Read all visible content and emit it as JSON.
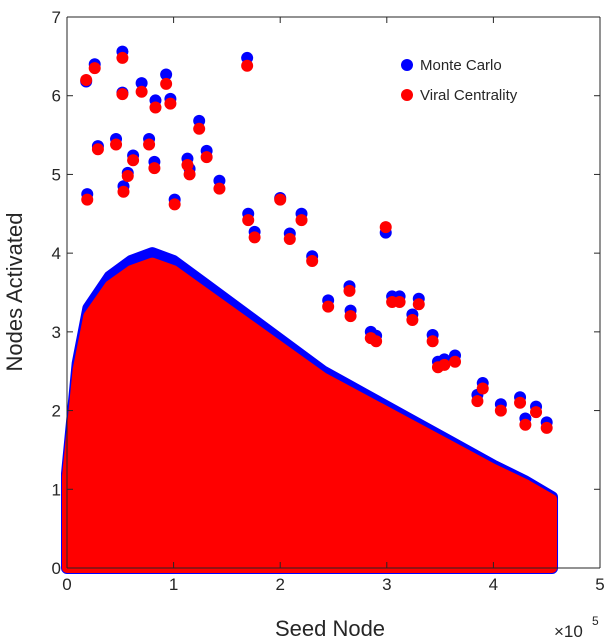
{
  "chart_data": {
    "type": "scatter",
    "xlabel": "Seed Node",
    "ylabel": "Nodes Activated",
    "x_multiplier_base": "×10",
    "x_multiplier_exp": "5",
    "xlim": [
      0,
      5
    ],
    "ylim": [
      0,
      7
    ],
    "x_ticks": [
      "0",
      "1",
      "2",
      "3",
      "4",
      "5"
    ],
    "y_ticks": [
      "0",
      "1",
      "2",
      "3",
      "4",
      "5",
      "6",
      "7"
    ],
    "grid": false,
    "legend_position": "top-right",
    "colors": {
      "monte_carlo": "#0000ff",
      "viral_centrality": "#ff0000"
    },
    "density_envelope": {
      "description_units": "x in units of 1e5 seed node index, y is upper edge of dense cloud",
      "x": [
        0,
        0.1,
        0.2,
        0.4,
        0.6,
        0.8,
        1.0,
        1.3,
        1.6,
        2.0,
        2.4,
        2.8,
        3.2,
        3.6,
        4.0,
        4.3,
        4.55
      ],
      "y": [
        1.2,
        2.6,
        3.3,
        3.7,
        3.9,
        4.0,
        3.9,
        3.6,
        3.3,
        2.9,
        2.5,
        2.2,
        1.9,
        1.6,
        1.3,
        1.1,
        0.9
      ]
    },
    "series": [
      {
        "name": "Monte Carlo",
        "x": [
          0.52,
          1.69,
          0.26,
          0.18,
          0.93,
          0.52,
          0.7,
          0.83,
          0.97,
          0.46,
          0.57,
          1.24,
          0.29,
          0.77,
          1.13,
          0.62,
          1.31,
          0.82,
          1.15,
          0.19,
          0.53,
          1.43,
          1.7,
          2.2,
          1.01,
          2.0,
          1.76,
          2.09,
          2.3,
          2.45,
          2.65,
          2.99,
          3.12,
          3.3,
          2.66,
          3.24,
          3.43,
          2.85,
          2.9,
          3.48,
          3.54,
          3.9,
          4.07,
          4.25,
          4.4,
          4.3,
          3.64,
          4.5,
          3.05,
          3.85
        ],
        "y": [
          6.56,
          6.48,
          6.4,
          6.18,
          6.27,
          6.04,
          6.16,
          5.94,
          5.96,
          5.45,
          5.02,
          5.68,
          5.36,
          5.45,
          5.2,
          5.24,
          5.3,
          5.16,
          5.07,
          4.75,
          4.85,
          4.92,
          4.5,
          4.5,
          4.68,
          4.7,
          4.27,
          4.25,
          3.96,
          3.4,
          3.58,
          4.26,
          3.45,
          3.42,
          3.27,
          3.22,
          2.96,
          3.0,
          2.95,
          2.62,
          2.65,
          2.35,
          2.08,
          2.17,
          2.05,
          1.9,
          2.7,
          1.85,
          3.45,
          2.2
        ]
      },
      {
        "name": "Viral Centrality",
        "x": [
          0.52,
          1.69,
          0.26,
          0.18,
          0.93,
          0.52,
          0.7,
          0.83,
          0.97,
          0.46,
          0.57,
          1.24,
          0.29,
          0.77,
          1.13,
          0.62,
          1.31,
          0.82,
          1.15,
          0.19,
          0.53,
          1.43,
          1.7,
          2.2,
          1.01,
          2.0,
          1.76,
          2.09,
          2.3,
          2.45,
          2.65,
          2.99,
          3.12,
          3.3,
          2.66,
          3.24,
          3.43,
          2.85,
          2.9,
          3.48,
          3.54,
          3.9,
          4.07,
          4.25,
          4.4,
          4.3,
          3.64,
          4.5,
          3.05,
          3.85
        ],
        "y": [
          6.48,
          6.38,
          6.35,
          6.2,
          6.15,
          6.02,
          6.05,
          5.85,
          5.9,
          5.38,
          4.98,
          5.58,
          5.32,
          5.38,
          5.12,
          5.18,
          5.22,
          5.08,
          5.0,
          4.68,
          4.78,
          4.82,
          4.42,
          4.42,
          4.62,
          4.68,
          4.2,
          4.18,
          3.9,
          3.32,
          3.52,
          4.33,
          3.38,
          3.35,
          3.2,
          3.15,
          2.88,
          2.92,
          2.88,
          2.55,
          2.58,
          2.28,
          2.0,
          2.1,
          1.98,
          1.82,
          2.62,
          1.78,
          3.38,
          2.12
        ]
      }
    ]
  }
}
